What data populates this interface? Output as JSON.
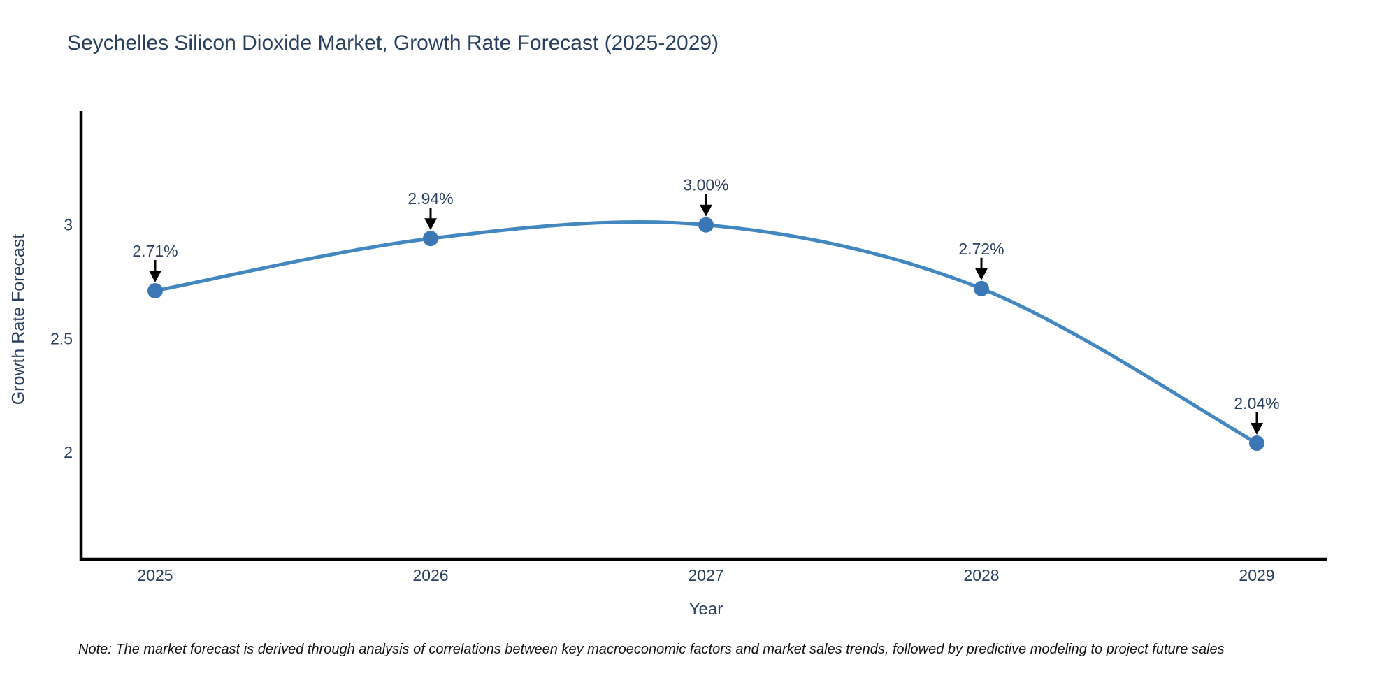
{
  "header": {
    "title": "Seychelles Silicon Dioxide Market, Growth Rate Forecast (2025-2029)"
  },
  "footer": {
    "note": "Note: The market forecast is derived through analysis of correlations between key macroeconomic factors and market sales trends, followed by predictive modeling to project future sales"
  },
  "chart_data": {
    "type": "line",
    "title": "Seychelles Silicon Dioxide Market, Growth Rate Forecast (2025-2029)",
    "xlabel": "Year",
    "ylabel": "Growth Rate Forecast",
    "x": [
      2025,
      2026,
      2027,
      2028,
      2029
    ],
    "series": [
      {
        "name": "Growth Rate Forecast",
        "values": [
          2.71,
          2.94,
          3.0,
          2.72,
          2.04
        ]
      }
    ],
    "point_labels": [
      "2.71%",
      "2.94%",
      "3.00%",
      "2.72%",
      "2.04%"
    ],
    "yticks": [
      {
        "value": 2,
        "label": "2"
      },
      {
        "value": 2.5,
        "label": "2.5"
      },
      {
        "value": 3,
        "label": "3"
      }
    ],
    "ylim": [
      1.53,
      3.5
    ],
    "line_shape": "spline",
    "grid": false,
    "legend": false,
    "annotations_have_arrows": true,
    "colors": {
      "line": "#4387c1",
      "marker": "#3a77b4",
      "text": "#2a3f5f",
      "axis": "#000000",
      "arrow": "#000000",
      "note_text": "#111111"
    }
  }
}
